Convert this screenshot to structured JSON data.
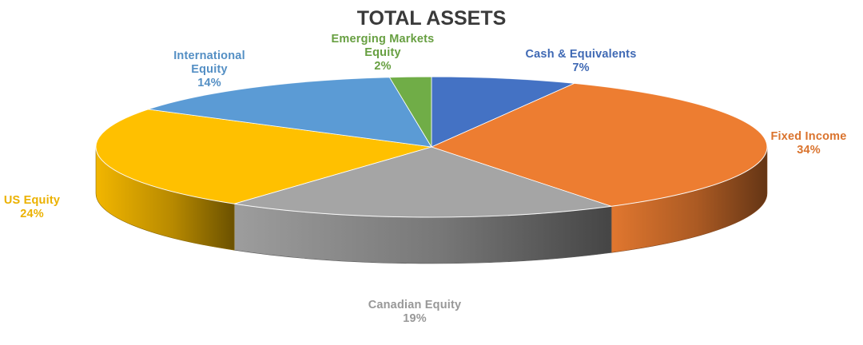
{
  "chart_data": {
    "type": "pie",
    "title": "TOTAL ASSETS",
    "style": "3d",
    "slices": [
      {
        "name": "Cash & Equivalents",
        "value": 7,
        "pct_label": "7%",
        "color": "#4472C4"
      },
      {
        "name": "Fixed Income",
        "value": 34,
        "pct_label": "34%",
        "color": "#ED7D31"
      },
      {
        "name": "Canadian Equity",
        "value": 19,
        "pct_label": "19%",
        "color": "#A5A5A5"
      },
      {
        "name": "US Equity",
        "value": 24,
        "pct_label": "24%",
        "color": "#FFC000"
      },
      {
        "name": "International Equity",
        "value": 14,
        "pct_label": "14%",
        "color": "#5B9BD5"
      },
      {
        "name": "Emerging Markets Equity",
        "value": 2,
        "pct_label": "2%",
        "color": "#70AD47"
      }
    ]
  }
}
